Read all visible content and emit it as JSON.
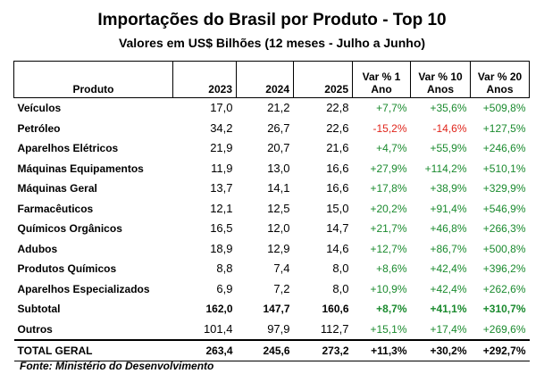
{
  "title": "Importações do Brasil por Produto - Top 10",
  "subtitle": "Valores em US$ Bilhões (12 meses - Julho a Junho)",
  "colors": {
    "positive": "#1a8a2e",
    "negative": "#e0241a"
  },
  "table": {
    "headers": {
      "produto": "Produto",
      "y2023": "2023",
      "y2024": "2024",
      "y2025": "2025",
      "var1_a": "Var % 1",
      "var1_b": "Ano",
      "var10_a": "Var % 10",
      "var10_b": "Anos",
      "var20_a": "Var % 20",
      "var20_b": "Anos"
    },
    "rows": [
      {
        "produto": "Veículos",
        "y2023": "17,0",
        "y2024": "21,2",
        "y2025": "22,8",
        "var1": "+7,7%",
        "var10": "+35,6%",
        "var20": "+509,8%"
      },
      {
        "produto": "Petróleo",
        "y2023": "34,2",
        "y2024": "26,7",
        "y2025": "22,6",
        "var1": "-15,2%",
        "var10": "-14,6%",
        "var20": "+127,5%"
      },
      {
        "produto": "Aparelhos Elétricos",
        "y2023": "21,9",
        "y2024": "20,7",
        "y2025": "21,6",
        "var1": "+4,7%",
        "var10": "+55,9%",
        "var20": "+246,6%"
      },
      {
        "produto": "Máquinas Equipamentos",
        "y2023": "11,9",
        "y2024": "13,0",
        "y2025": "16,6",
        "var1": "+27,9%",
        "var10": "+114,2%",
        "var20": "+510,1%"
      },
      {
        "produto": "Máquinas Geral",
        "y2023": "13,7",
        "y2024": "14,1",
        "y2025": "16,6",
        "var1": "+17,8%",
        "var10": "+38,9%",
        "var20": "+329,9%"
      },
      {
        "produto": "Farmacêuticos",
        "y2023": "12,1",
        "y2024": "12,5",
        "y2025": "15,0",
        "var1": "+20,2%",
        "var10": "+91,4%",
        "var20": "+546,9%"
      },
      {
        "produto": "Químicos Orgânicos",
        "y2023": "16,5",
        "y2024": "12,0",
        "y2025": "14,7",
        "var1": "+21,7%",
        "var10": "+46,8%",
        "var20": "+266,3%"
      },
      {
        "produto": "Adubos",
        "y2023": "18,9",
        "y2024": "12,9",
        "y2025": "14,6",
        "var1": "+12,7%",
        "var10": "+86,7%",
        "var20": "+500,8%"
      },
      {
        "produto": "Produtos Químicos",
        "y2023": "8,8",
        "y2024": "7,4",
        "y2025": "8,0",
        "var1": "+8,6%",
        "var10": "+42,4%",
        "var20": "+396,2%"
      },
      {
        "produto": "Aparelhos Especializados",
        "y2023": "6,9",
        "y2024": "7,2",
        "y2025": "8,0",
        "var1": "+10,9%",
        "var10": "+42,4%",
        "var20": "+262,6%"
      }
    ],
    "subtotal": {
      "produto": "Subtotal",
      "y2023": "162,0",
      "y2024": "147,7",
      "y2025": "160,6",
      "var1": "+8,7%",
      "var10": "+41,1%",
      "var20": "+310,7%"
    },
    "outros": {
      "produto": "Outros",
      "y2023": "101,4",
      "y2024": "97,9",
      "y2025": "112,7",
      "var1": "+15,1%",
      "var10": "+17,4%",
      "var20": "+269,6%"
    },
    "total": {
      "produto": "TOTAL GERAL",
      "y2023": "263,4",
      "y2024": "245,6",
      "y2025": "273,2",
      "var1": "+11,3%",
      "var10": "+30,2%",
      "var20": "+292,7%"
    }
  },
  "source": "Fonte: Ministério do Desenvolvimento"
}
